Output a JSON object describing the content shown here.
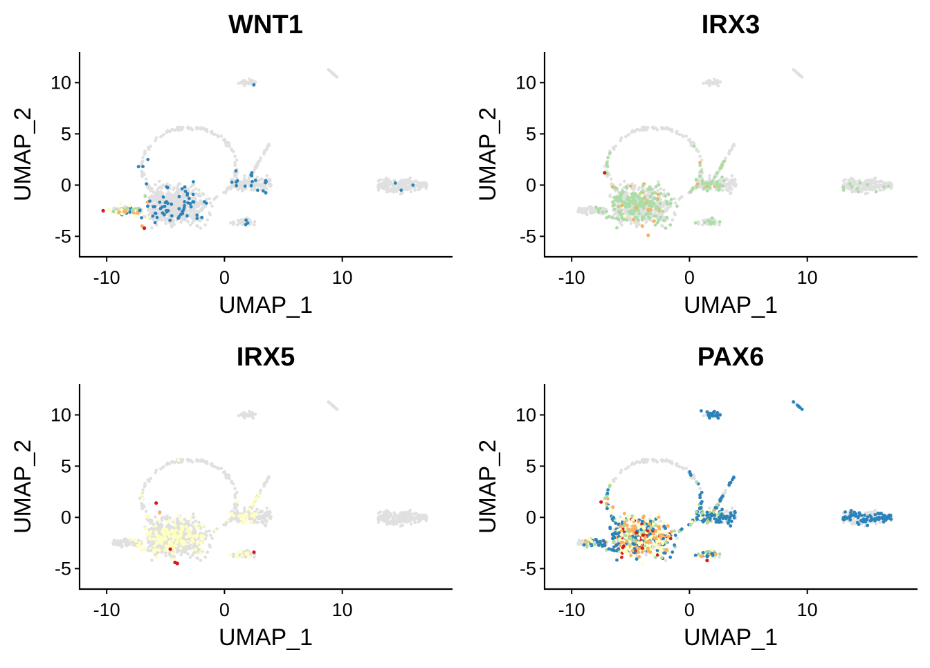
{
  "chart_data": {
    "type": "scatter",
    "layout": "2x2 facet grid",
    "xlabel": "UMAP_1",
    "ylabel": "UMAP_2",
    "xlim": [
      -12.3,
      19.3
    ],
    "ylim": [
      -7,
      13
    ],
    "xticks": [
      -10,
      0,
      10
    ],
    "yticks": [
      -5,
      0,
      5,
      10
    ],
    "xtick_labels": [
      "-10",
      "0",
      "10"
    ],
    "ytick_labels": [
      "-5",
      "0",
      "5",
      "10"
    ],
    "legend": "none",
    "grid": false,
    "background_color": "#E0E0E0",
    "expression_colors": [
      "#2B83BA",
      "#ABDDA4",
      "#FFFFBF",
      "#FDAE61",
      "#D7191C"
    ],
    "panels": [
      {
        "title": "WNT1",
        "hotspots": [
          {
            "x": -9.8,
            "y": -2.4,
            "level": 2
          },
          {
            "x": -8.5,
            "y": -2.6,
            "level": 3
          },
          {
            "x": -8.0,
            "y": -2.0,
            "level": 2
          },
          {
            "x": -7.5,
            "y": -3.0,
            "level": 2
          },
          {
            "x": -7.0,
            "y": -4.0,
            "level": 3
          },
          {
            "x": -6.8,
            "y": -4.2,
            "level": 4
          },
          {
            "x": -10.3,
            "y": -2.5,
            "level": 4
          },
          {
            "x": -8.8,
            "y": -1.8,
            "level": 2
          },
          {
            "x": -7.8,
            "y": -2.5,
            "level": 1
          }
        ],
        "extra_blue": [
          [
            14.5,
            0.2
          ],
          [
            15.0,
            -0.5
          ],
          [
            16.0,
            0.0
          ],
          [
            2.5,
            9.8
          ],
          [
            1.0,
            0.3
          ],
          [
            -7.3,
            1.8
          ],
          [
            -6.5,
            2.5
          ]
        ]
      },
      {
        "title": "IRX3",
        "hotspots": [
          {
            "x": -4.0,
            "y": -4.0,
            "level": 3
          },
          {
            "x": -3.5,
            "y": -4.9,
            "level": 3
          },
          {
            "x": -4.5,
            "y": -2.2,
            "level": 3
          },
          {
            "x": -3.0,
            "y": -3.5,
            "level": 3
          },
          {
            "x": -7.2,
            "y": 1.2,
            "level": 4
          },
          {
            "x": -5.5,
            "y": -3.0,
            "level": 2
          },
          {
            "x": -4.0,
            "y": -1.0,
            "level": 2
          }
        ],
        "extra_blue": []
      },
      {
        "title": "IRX5",
        "hotspots": [
          {
            "x": -5.8,
            "y": 1.4,
            "level": 4
          },
          {
            "x": -4.6,
            "y": -3.1,
            "level": 4
          },
          {
            "x": -4.2,
            "y": -4.4,
            "level": 4
          },
          {
            "x": -4.0,
            "y": -4.5,
            "level": 4
          },
          {
            "x": 2.5,
            "y": -3.4,
            "level": 4
          },
          {
            "x": -5.5,
            "y": 0.5,
            "level": 3
          },
          {
            "x": -3.9,
            "y": 5.6,
            "level": 2
          }
        ],
        "extra_blue": []
      },
      {
        "title": "PAX6",
        "hotspots": [
          {
            "x": -4.5,
            "y": -1.5,
            "level": 4
          },
          {
            "x": -4.0,
            "y": -3.0,
            "level": 4
          },
          {
            "x": -5.5,
            "y": -0.5,
            "level": 3
          },
          {
            "x": -3.0,
            "y": -2.0,
            "level": 3
          },
          {
            "x": -6.5,
            "y": 1.0,
            "level": 3
          },
          {
            "x": -7.5,
            "y": 1.5,
            "level": 4
          },
          {
            "x": 1.5,
            "y": -4.2,
            "level": 4
          },
          {
            "x": 1.0,
            "y": -3.8,
            "level": 3
          },
          {
            "x": -4.0,
            "y": -4.5,
            "level": 2
          },
          {
            "x": -2.5,
            "y": -3.5,
            "level": 2
          }
        ],
        "extra_blue": [
          [
            1.5,
            10.3
          ],
          [
            2.0,
            10.2
          ],
          [
            2.6,
            10.0
          ],
          [
            1.0,
            10.4
          ],
          [
            15.0,
            -0.2
          ],
          [
            16.0,
            0.4
          ],
          [
            16.5,
            0.2
          ],
          [
            14.0,
            0.5
          ],
          [
            1.5,
            0.5
          ],
          [
            2.5,
            0.0
          ]
        ]
      }
    ]
  }
}
